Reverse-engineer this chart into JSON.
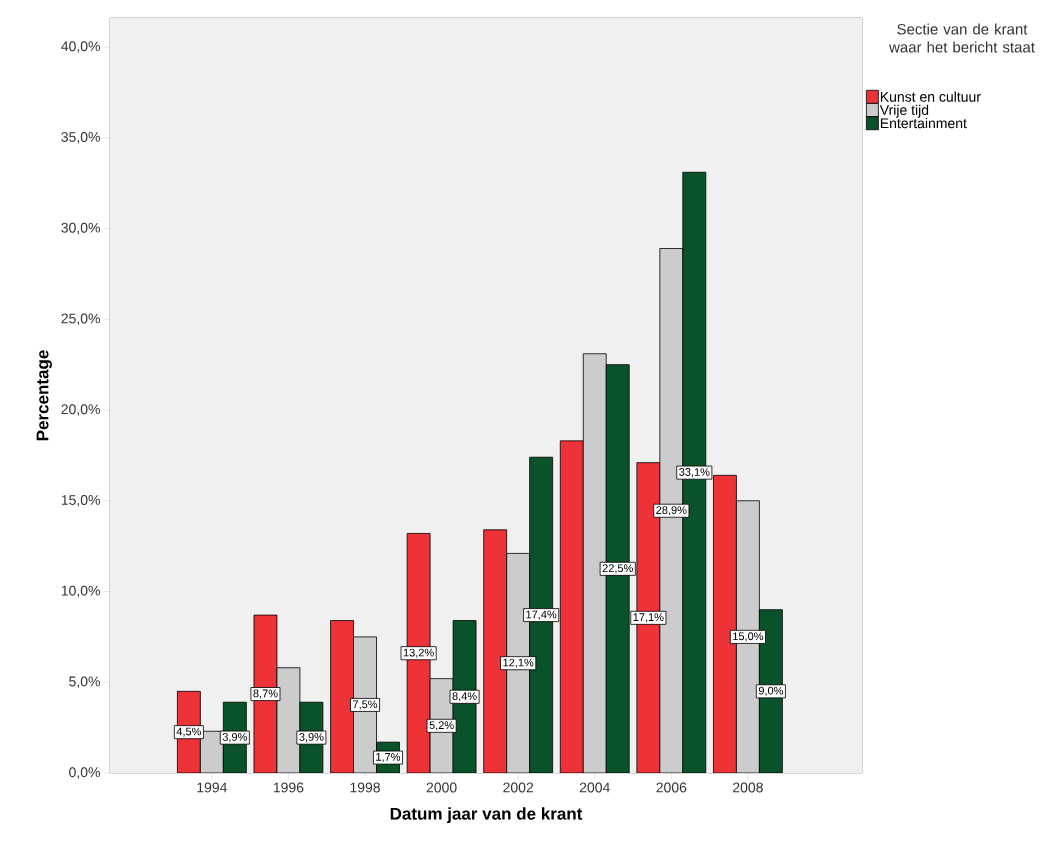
{
  "chart_data": {
    "type": "bar",
    "xlabel": "Datum jaar van de krant",
    "ylabel": "Percentage",
    "legend_title": "Sectie van de krant waar het bericht staat",
    "categories": [
      "1994",
      "1996",
      "1998",
      "2000",
      "2002",
      "2004",
      "2006",
      "2008"
    ],
    "series": [
      {
        "name": "Kunst en cultuur",
        "color": "#ee3338",
        "values": [
          4.5,
          8.7,
          8.4,
          13.2,
          13.4,
          18.3,
          17.1,
          16.4
        ],
        "value_labels": [
          "4,5%",
          "8,7%",
          null,
          "13,2%",
          null,
          null,
          "17,1%",
          null
        ]
      },
      {
        "name": "Vrije tijd",
        "color": "#cccccc",
        "values": [
          2.3,
          5.8,
          7.5,
          5.2,
          12.1,
          23.1,
          28.9,
          15.0
        ],
        "value_labels": [
          null,
          null,
          "7,5%",
          "5,2%",
          "12,1%",
          null,
          "28,9%",
          "15,0%"
        ]
      },
      {
        "name": "Entertainment",
        "color": "#0a5229",
        "values": [
          3.9,
          3.9,
          1.7,
          8.4,
          17.4,
          22.5,
          33.1,
          9.0
        ],
        "value_labels": [
          "3,9%",
          "3,9%",
          "1,7%",
          "8,4%",
          "17,4%",
          "22,5%",
          "33,1%",
          "9,0%"
        ]
      }
    ],
    "ylim": [
      0,
      41.6
    ],
    "yticks": [
      {
        "value": 0,
        "label": "0,0%"
      },
      {
        "value": 5,
        "label": "5,0%"
      },
      {
        "value": 10,
        "label": "10,0%"
      },
      {
        "value": 15,
        "label": "15,0%"
      },
      {
        "value": 20,
        "label": "20,0%"
      },
      {
        "value": 25,
        "label": "25,0%"
      },
      {
        "value": 30,
        "label": "30,0%"
      },
      {
        "value": 35,
        "label": "35,0%"
      },
      {
        "value": 40,
        "label": "40,0%"
      }
    ],
    "grid": false,
    "legend": "right"
  }
}
